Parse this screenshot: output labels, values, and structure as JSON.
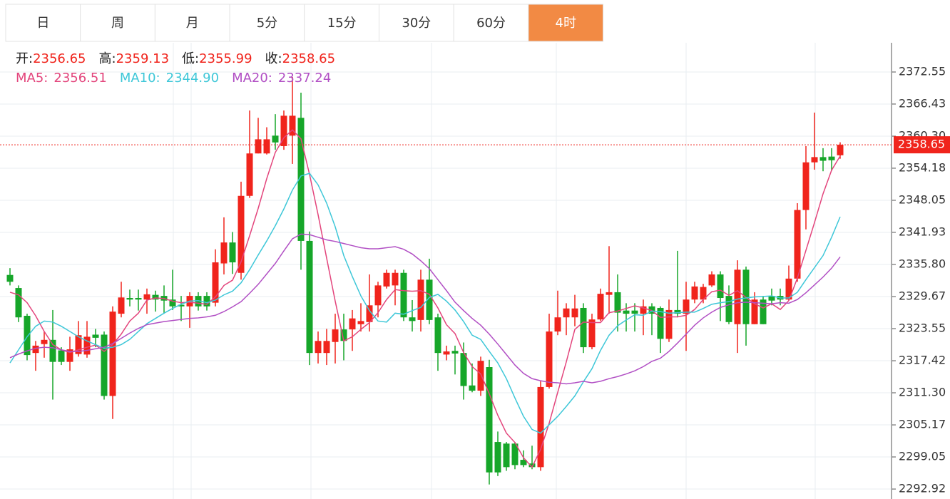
{
  "chart_data": {
    "type": "candlestick",
    "tabs": [
      "日",
      "周",
      "月",
      "5分",
      "15分",
      "30分",
      "60分",
      "4时"
    ],
    "active_tab": 7,
    "ohlc_legend": [
      {
        "label": "开:",
        "value": "2356.65"
      },
      {
        "label": "高:",
        "value": "2359.13"
      },
      {
        "label": "低:",
        "value": "2355.99"
      },
      {
        "label": "收:",
        "value": "2358.65"
      }
    ],
    "up_color": "#f0241c",
    "down_color": "#16a629",
    "ylim": [
      2291.02,
      2378.13
    ],
    "yticks": [
      2372.55,
      2366.43,
      {
        "value": 2360.3,
        "label": "2360.30"
      },
      2354.18,
      2348.05,
      2341.93,
      {
        "value": 2335.8,
        "label": "2335.80"
      },
      2329.67,
      2323.55,
      2317.42,
      {
        "value": 2311.3,
        "label": "2311.30"
      },
      2305.17,
      2299.05,
      2292.92
    ],
    "grid": true,
    "last_price": 2358.65,
    "open": [
      2333.8,
      2331.3,
      2326,
      2318.9,
      2320.6,
      2321.4,
      2319.4,
      2317.2,
      2318.7,
      2318.6,
      2322.4,
      2322.4,
      2310.7,
      2326.4,
      2329.4,
      2329.4,
      2329.1,
      2330,
      2329.8,
      2329.1,
      2328.1,
      2327.8,
      2329.8,
      2329.8,
      2328.5,
      2336,
      2340,
      2334.2,
      2348.9,
      2357,
      2357,
      2360.4,
      2358.4,
      2360.4,
      2363.8,
      2340.3,
      2318.9,
      2318.9,
      2321,
      2323.4,
      2323.4,
      2324.4,
      2324.8,
      2328,
      2331.6,
      2331.8,
      2334.2,
      2325.7,
      2325.2,
      2332.9,
      2325.7,
      2318.6,
      2319.3,
      2318.9,
      2312.7,
      2311.7,
      2316.2,
      2301.9,
      2301.6,
      2301.6,
      2298.5,
      2297.8,
      2297.1,
      2312.4,
      2323,
      2325.7,
      2325.7,
      2327.5,
      2320,
      2325.3,
      2330,
      2330.5,
      2327,
      2327,
      2326.4,
      2327.8,
      2327.5,
      2321.6,
      2327.1,
      2326.4,
      2329.1,
      2329.1,
      2331.8,
      2333.9,
      2329.8,
      2324.4,
      2334.8,
      2324.4,
      2329.1,
      2329.8,
      2329.8,
      2329.1,
      2333.1,
      2346.2,
      2355.3,
      2356.3,
      2356.4,
      2356.65
    ],
    "high": [
      2335.1,
      2331.8,
      2326.4,
      2321.2,
      2323,
      2327.1,
      2320,
      2322,
      2325,
      2325,
      2323.5,
      2323,
      2327.8,
      2332.5,
      2331,
      2331,
      2331.2,
      2330.8,
      2331.8,
      2334.8,
      2329.8,
      2330.5,
      2330.5,
      2330.5,
      2338.7,
      2344.8,
      2342,
      2351.6,
      2365.2,
      2363.8,
      2362,
      2364.5,
      2365.2,
      2371.6,
      2368.6,
      2342.1,
      2323,
      2323.5,
      2326.4,
      2326.4,
      2327.1,
      2328.4,
      2333.9,
      2332.5,
      2334.8,
      2334.8,
      2334.8,
      2329,
      2334.8,
      2336.9,
      2326.4,
      2320.3,
      2320.3,
      2320.9,
      2316.9,
      2318.2,
      2317.6,
      2303.9,
      2301.9,
      2301.9,
      2300.3,
      2301.2,
      2313.5,
      2326.4,
      2330.8,
      2328.4,
      2330,
      2328.4,
      2326.4,
      2331.2,
      2339.3,
      2333.9,
      2328.4,
      2328.4,
      2329.1,
      2328.4,
      2327.8,
      2329.1,
      2338.4,
      2332.5,
      2332.5,
      2332.1,
      2334.5,
      2334.5,
      2331.8,
      2336.6,
      2335.4,
      2330.5,
      2329.8,
      2331.2,
      2331.2,
      2335.6,
      2347.5,
      2358.4,
      2364.8,
      2358,
      2358,
      2359.13
    ],
    "low": [
      2331.8,
      2324.8,
      2317.5,
      2315.5,
      2318,
      2310,
      2316.6,
      2315.5,
      2318.2,
      2318,
      2320,
      2310,
      2306.3,
      2325.7,
      2327.8,
      2327,
      2326.4,
      2326.8,
      2326.4,
      2327.1,
      2325,
      2323.7,
      2327,
      2327,
      2327.8,
      2333.9,
      2334,
      2332.9,
      2348.5,
      2357,
      2356.8,
      2357.7,
      2357.7,
      2355,
      2334.8,
      2316.6,
      2316.9,
      2316.6,
      2316.9,
      2317.5,
      2319.3,
      2323,
      2323,
      2325.7,
      2331.2,
      2328,
      2325,
      2323,
      2323,
      2324.4,
      2315.5,
      2317.5,
      2314.8,
      2310,
      2311.4,
      2310.7,
      2293.8,
      2295.4,
      2296.4,
      2296.7,
      2297.1,
      2296.7,
      2296.4,
      2312.1,
      2322.3,
      2322.3,
      2324,
      2318.9,
      2319.6,
      2325,
      2326.4,
      2323,
      2323,
      2323,
      2322.3,
      2322.3,
      2318.9,
      2321,
      2325.7,
      2319.3,
      2328.4,
      2328.4,
      2331.5,
      2325,
      2324.4,
      2318.9,
      2320.3,
      2324.4,
      2324.4,
      2328,
      2328,
      2328.9,
      2332.5,
      2342.5,
      2353.9,
      2353.6,
      2353.7,
      2355.99
    ],
    "close": [
      2332.5,
      2325.7,
      2318.5,
      2320.3,
      2321.4,
      2317.2,
      2317.2,
      2319.6,
      2322.3,
      2322,
      2321.8,
      2310.7,
      2326.8,
      2329.5,
      2329.1,
      2329.1,
      2330.1,
      2329.1,
      2328.9,
      2327.8,
      2327.8,
      2329.8,
      2327.8,
      2327.8,
      2336.2,
      2340,
      2336.2,
      2348.9,
      2357,
      2359.7,
      2359.7,
      2359.1,
      2364.2,
      2364.2,
      2340.3,
      2318.9,
      2321.2,
      2321.2,
      2323.4,
      2321.2,
      2325.5,
      2325,
      2328,
      2331.8,
      2334.2,
      2334.2,
      2325.7,
      2325,
      2332.9,
      2325.2,
      2318.9,
      2319.2,
      2318.8,
      2312.6,
      2311.7,
      2317.4,
      2296.1,
      2296.1,
      2297.1,
      2297.5,
      2297.5,
      2297.1,
      2312.4,
      2323,
      2325.7,
      2327.4,
      2327.4,
      2320,
      2325.3,
      2330.2,
      2330.5,
      2326.6,
      2326.4,
      2326.4,
      2327.8,
      2326.4,
      2321.6,
      2327.1,
      2326.4,
      2329.1,
      2331.6,
      2331.5,
      2333.9,
      2329.4,
      2324.8,
      2334.8,
      2324.4,
      2329.1,
      2324.4,
      2328.9,
      2329.1,
      2333.1,
      2346.2,
      2355.3,
      2356.3,
      2355.6,
      2355.7,
      2358.65
    ],
    "series": [
      {
        "name": "MA5:",
        "last_label": "2356.51",
        "color": "#e3457c",
        "values": [
          2330.5,
          2330,
          2328.5,
          2326,
          2323,
          2320.5,
          2319.5,
          2319,
          2319.5,
          2320,
          2320.4,
          2319.2,
          2320.5,
          2322.5,
          2325,
          2326.5,
          2329,
          2329.4,
          2329.3,
          2328.8,
          2328.5,
          2328.6,
          2328.4,
          2328.2,
          2329.6,
          2331.8,
          2332.8,
          2336.3,
          2341.3,
          2346.5,
          2352.2,
          2357.2,
          2360,
          2361.5,
          2359.8,
          2353,
          2345.3,
          2337,
          2328.8,
          2321.2,
          2322,
          2323.4,
          2324.7,
          2326.6,
          2329.1,
          2331,
          2330.8,
          2330.7,
          2330.8,
          2330.1,
          2327.5,
          2324.3,
          2322.6,
          2319,
          2316.3,
          2314.9,
          2311.1,
          2307,
          2303.6,
          2301.8,
          2298.9,
          2297.1,
          2300.5,
          2305.5,
          2311.4,
          2317.2,
          2323.4,
          2324.8,
          2324.7,
          2324.7,
          2326.6,
          2326.9,
          2327.4,
          2327.9,
          2327.5,
          2327,
          2325.7,
          2325.8,
          2325.8,
          2326.1,
          2327.2,
          2329.1,
          2330.6,
          2330.9,
          2329.9,
          2330.8,
          2329.5,
          2328.3,
          2327.5,
          2328.3,
          2327.2,
          2328.9,
          2333.2,
          2338.5,
          2343.8,
          2349.3,
          2353.8,
          2356.51
        ]
      },
      {
        "name": "MA10:",
        "last_label": "2344.90",
        "color": "#3ec7d8",
        "values": [
          2317,
          2319.5,
          2322,
          2324,
          2325,
          2324.8,
          2324,
          2323,
          2322,
          2321.2,
          2320.5,
          2319.8,
          2320,
          2320.5,
          2321.5,
          2323,
          2324.5,
          2325.5,
          2326.5,
          2327.4,
          2328.2,
          2328.8,
          2328.9,
          2328.5,
          2329,
          2330,
          2330.7,
          2332.3,
          2334.8,
          2337.6,
          2340.3,
          2343.2,
          2346.4,
          2350,
          2352.7,
          2353.2,
          2351,
          2347.5,
          2343,
          2337.5,
          2333.5,
          2329.8,
          2327,
          2325,
          2324.8,
          2326.5,
          2326.3,
          2327,
          2327.6,
          2329.5,
          2330.1,
          2328.8,
          2327.1,
          2324.9,
          2322.3,
          2321.5,
          2319.2,
          2317,
          2314,
          2310.3,
          2306.8,
          2304.3,
          2303.6,
          2305.2,
          2306.8,
          2308.7,
          2310.7,
          2313.4,
          2315.9,
          2319.4,
          2322.3,
          2324.1,
          2325.2,
          2326.2,
          2326.1,
          2326.9,
          2326.8,
          2326.5,
          2326.6,
          2326.7,
          2326.7,
          2327.4,
          2328.2,
          2328.5,
          2328.7,
          2329.2,
          2329.4,
          2329.6,
          2329.7,
          2329.8,
          2329.4,
          2329.4,
          2330.5,
          2332.9,
          2335.2,
          2337.5,
          2341,
          2344.9
        ]
      },
      {
        "name": "MA20:",
        "last_label": "2337.24",
        "color": "#b14fc4",
        "values": [
          2318,
          2318.7,
          2319.3,
          2319.8,
          2320,
          2319.9,
          2319.5,
          2319.2,
          2319.2,
          2319.4,
          2319.7,
          2320,
          2320.7,
          2321.7,
          2322.7,
          2323.6,
          2324.3,
          2324.6,
          2324.9,
          2325.1,
          2325.3,
          2325.5,
          2325.6,
          2325.8,
          2326.1,
          2326.8,
          2327.7,
          2328.7,
          2330.3,
          2332,
          2334,
          2336,
          2338.4,
          2340.7,
          2341.6,
          2341.5,
          2341,
          2340.5,
          2340.2,
          2339.8,
          2339.4,
          2339,
          2338.8,
          2338.8,
          2339,
          2339.2,
          2338.7,
          2337.8,
          2336.5,
          2335,
          2332.9,
          2330.8,
          2328.6,
          2327,
          2325.5,
          2324.2,
          2322.5,
          2320.6,
          2318.6,
          2316.6,
          2315,
          2314,
          2313.6,
          2313.3,
          2313.2,
          2313,
          2313.2,
          2313.5,
          2313.2,
          2313.5,
          2314,
          2314.4,
          2314.9,
          2315.5,
          2316.3,
          2317.3,
          2317.9,
          2319.2,
          2320.8,
          2322.5,
          2324.2,
          2325.6,
          2326.7,
          2327.6,
          2328.1,
          2328.5,
          2328.6,
          2328.5,
          2328.4,
          2328.3,
          2328.5,
          2328.4,
          2329.1,
          2330.4,
          2331.9,
          2333.4,
          2335.1,
          2337.24
        ]
      }
    ]
  }
}
